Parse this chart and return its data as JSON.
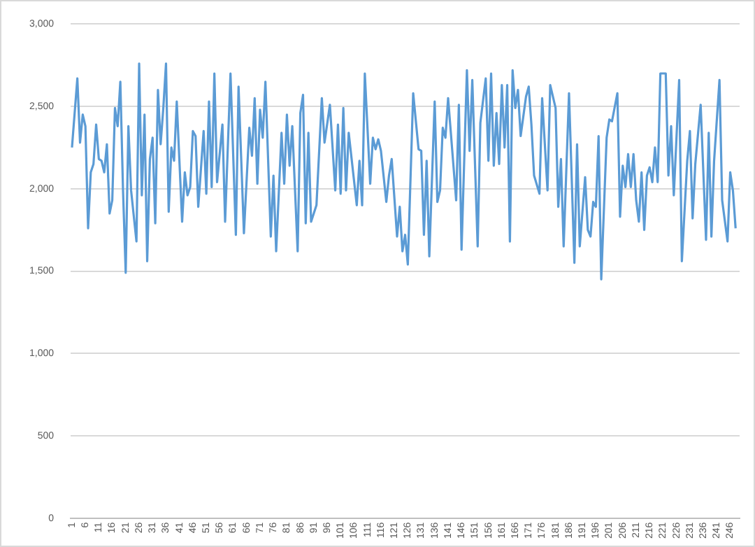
{
  "chart_data": {
    "type": "line",
    "xlim": [
      0.5,
      249.5
    ],
    "xticks": [
      1,
      6,
      11,
      16,
      21,
      26,
      31,
      36,
      41,
      46,
      51,
      56,
      61,
      66,
      71,
      76,
      81,
      86,
      91,
      96,
      101,
      106,
      111,
      116,
      121,
      126,
      131,
      136,
      141,
      146,
      151,
      156,
      161,
      166,
      171,
      176,
      181,
      186,
      191,
      196,
      201,
      206,
      211,
      216,
      221,
      226,
      231,
      236,
      241,
      246
    ],
    "ylim": [
      0,
      3000
    ],
    "yticks": [
      0,
      {
        "value": 500,
        "label": "500"
      },
      {
        "value": 1000,
        "label": "1,000"
      },
      {
        "value": 1500,
        "label": "1,500"
      },
      {
        "value": 2000,
        "label": "2,000"
      },
      {
        "value": 2500,
        "label": "2,500"
      },
      {
        "value": 3000,
        "label": "3,000"
      }
    ],
    "grid": "y",
    "legend": false,
    "marker": "none",
    "line_style": "solid",
    "series": [
      {
        "color": "#5b9bd5",
        "x": [
          1,
          3,
          4,
          5,
          6,
          7,
          8,
          9,
          10,
          11,
          12,
          13,
          14,
          15,
          16,
          17,
          18,
          19,
          20,
          21,
          22,
          23,
          25,
          26,
          27,
          28,
          29,
          30,
          31,
          32,
          33,
          34,
          35,
          36,
          37,
          38,
          39,
          40,
          42,
          43,
          44,
          45,
          46,
          47,
          48,
          50,
          51,
          52,
          53,
          54,
          55,
          57,
          58,
          60,
          62,
          63,
          65,
          67,
          68,
          69,
          70,
          71,
          72,
          73,
          75,
          76,
          77,
          79,
          80,
          81,
          82,
          83,
          85,
          86,
          87,
          88,
          89,
          90,
          92,
          94,
          95,
          97,
          99,
          100,
          101,
          102,
          103,
          104,
          107,
          108,
          109,
          110,
          112,
          113,
          114,
          115,
          116,
          118,
          119,
          120,
          122,
          123,
          124,
          125,
          126,
          128,
          130,
          131,
          132,
          133,
          134,
          136,
          137,
          138,
          139,
          140,
          141,
          144,
          145,
          146,
          148,
          149,
          150,
          152,
          153,
          155,
          156,
          157,
          158,
          159,
          160,
          161,
          162,
          163,
          164,
          165,
          166,
          167,
          168,
          170,
          171,
          172,
          173,
          175,
          176,
          178,
          179,
          181,
          182,
          183,
          184,
          186,
          188,
          189,
          190,
          192,
          193,
          194,
          195,
          196,
          197,
          198,
          200,
          201,
          202,
          204,
          205,
          206,
          207,
          208,
          209,
          210,
          211,
          212,
          213,
          214,
          215,
          216,
          217,
          218,
          219,
          220,
          222,
          223,
          224,
          225,
          227,
          228,
          230,
          231,
          232,
          233,
          235,
          237,
          238,
          239,
          240,
          242,
          243,
          245,
          246,
          247,
          248
        ],
        "values": [
          2250,
          2670,
          2280,
          2450,
          2380,
          1760,
          2100,
          2150,
          2390,
          2180,
          2170,
          2100,
          2270,
          1850,
          1930,
          2490,
          2380,
          2650,
          1990,
          1490,
          2380,
          1990,
          1680,
          2760,
          1960,
          2450,
          1560,
          2180,
          2310,
          1790,
          2600,
          2270,
          2490,
          2760,
          1860,
          2250,
          2170,
          2530,
          1800,
          2100,
          1960,
          2010,
          2350,
          2320,
          1890,
          2350,
          1970,
          2530,
          2010,
          2700,
          2040,
          2390,
          1800,
          2700,
          1720,
          2620,
          1730,
          2370,
          2200,
          2550,
          2030,
          2480,
          2310,
          2650,
          1710,
          2080,
          1620,
          2340,
          2030,
          2450,
          2140,
          2380,
          1620,
          2460,
          2570,
          1790,
          2340,
          1800,
          1900,
          2550,
          2280,
          2510,
          1990,
          2390,
          1970,
          2490,
          1990,
          2340,
          1900,
          2170,
          1900,
          2700,
          2030,
          2310,
          2240,
          2300,
          2230,
          1920,
          2080,
          2180,
          1710,
          1890,
          1620,
          1720,
          1540,
          2580,
          2240,
          2230,
          1720,
          2170,
          1590,
          2530,
          1920,
          1990,
          2370,
          2310,
          2550,
          1930,
          2510,
          1630,
          2720,
          2230,
          2660,
          1650,
          2400,
          2670,
          2170,
          2700,
          2140,
          2460,
          2150,
          2630,
          2250,
          2630,
          1680,
          2720,
          2490,
          2600,
          2320,
          2560,
          2620,
          2390,
          2080,
          1970,
          2550,
          1990,
          2630,
          2490,
          1890,
          2180,
          1650,
          2580,
          1550,
          2270,
          1650,
          2070,
          1750,
          1710,
          1920,
          1890,
          2320,
          1450,
          2310,
          2420,
          2410,
          2580,
          1830,
          2140,
          2010,
          2210,
          2010,
          2210,
          1930,
          1800,
          2100,
          1750,
          2080,
          2130,
          2040,
          2250,
          2040,
          2700,
          2700,
          2080,
          2380,
          1960,
          2660,
          1560,
          2170,
          2350,
          1820,
          2150,
          2510,
          1690,
          2340,
          1710,
          2170,
          2660,
          1930,
          1680,
          2100,
          1990,
          1760
        ]
      }
    ]
  }
}
